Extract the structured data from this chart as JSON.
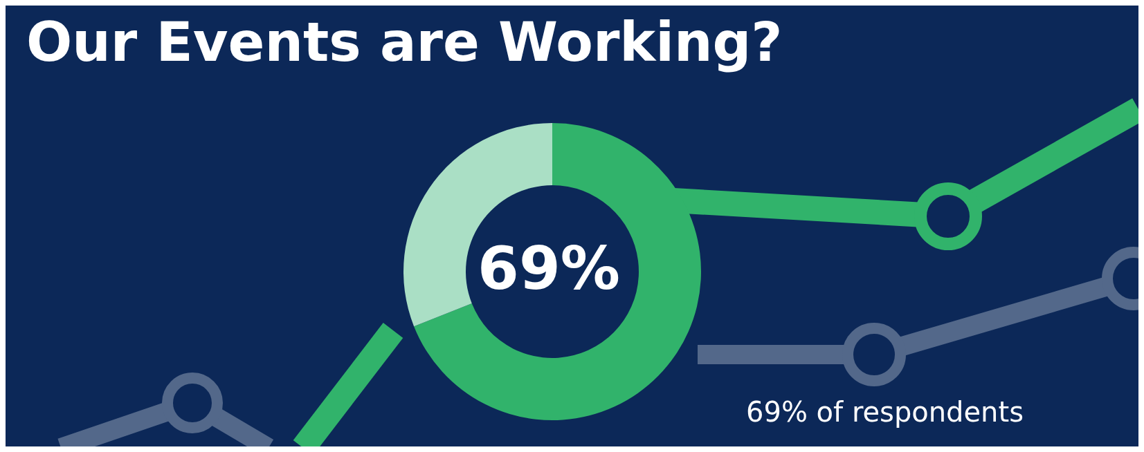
{
  "chart_data": {
    "type": "donut",
    "title": "Our Events are Working?",
    "categories": [
      null,
      null
    ],
    "values": [
      69,
      31
    ],
    "colors": [
      "#31b36b",
      "#aadfc5"
    ],
    "annotations": [
      "69%",
      "69% of respondents"
    ]
  }
}
